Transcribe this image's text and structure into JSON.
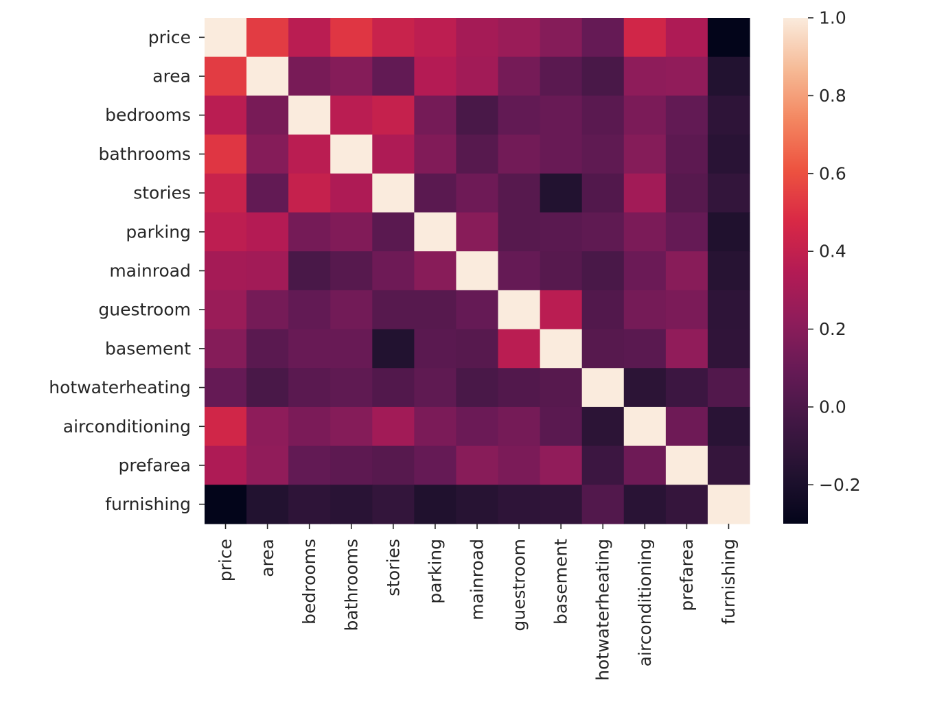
{
  "chart_data": {
    "type": "heatmap",
    "title": "",
    "xlabel": "",
    "ylabel": "",
    "labels": [
      "price",
      "area",
      "bedrooms",
      "bathrooms",
      "stories",
      "parking",
      "mainroad",
      "guestroom",
      "basement",
      "hotwaterheating",
      "airconditioning",
      "prefarea",
      "furnishing"
    ],
    "matrix": [
      [
        1.0,
        0.54,
        0.37,
        0.52,
        0.42,
        0.38,
        0.3,
        0.26,
        0.19,
        0.09,
        0.45,
        0.33,
        -0.3
      ],
      [
        0.54,
        1.0,
        0.15,
        0.19,
        0.08,
        0.35,
        0.29,
        0.14,
        0.05,
        -0.01,
        0.22,
        0.23,
        -0.17
      ],
      [
        0.37,
        0.15,
        1.0,
        0.37,
        0.41,
        0.14,
        -0.01,
        0.08,
        0.1,
        0.05,
        0.16,
        0.08,
        -0.12
      ],
      [
        0.52,
        0.19,
        0.37,
        1.0,
        0.33,
        0.18,
        0.04,
        0.13,
        0.1,
        0.07,
        0.19,
        0.06,
        -0.14
      ],
      [
        0.42,
        0.08,
        0.41,
        0.33,
        1.0,
        0.05,
        0.12,
        0.04,
        -0.17,
        0.02,
        0.29,
        0.04,
        -0.1
      ],
      [
        0.38,
        0.35,
        0.14,
        0.18,
        0.05,
        1.0,
        0.2,
        0.04,
        0.05,
        0.07,
        0.16,
        0.09,
        -0.18
      ],
      [
        0.3,
        0.29,
        -0.01,
        0.04,
        0.12,
        0.2,
        1.0,
        0.09,
        0.04,
        -0.01,
        0.11,
        0.2,
        -0.15
      ],
      [
        0.26,
        0.14,
        0.08,
        0.13,
        0.04,
        0.04,
        0.09,
        1.0,
        0.37,
        0.02,
        0.14,
        0.16,
        -0.12
      ],
      [
        0.19,
        0.05,
        0.1,
        0.1,
        -0.17,
        0.05,
        0.04,
        0.37,
        1.0,
        0.04,
        0.05,
        0.23,
        -0.11
      ],
      [
        0.09,
        -0.01,
        0.05,
        0.07,
        0.02,
        0.07,
        -0.01,
        0.02,
        0.04,
        1.0,
        -0.13,
        -0.06,
        0.02
      ],
      [
        0.45,
        0.22,
        0.16,
        0.19,
        0.29,
        0.16,
        0.11,
        0.14,
        0.05,
        -0.13,
        1.0,
        0.12,
        -0.14
      ],
      [
        0.33,
        0.23,
        0.08,
        0.06,
        0.04,
        0.09,
        0.2,
        0.16,
        0.23,
        -0.06,
        0.12,
        1.0,
        -0.09
      ],
      [
        -0.3,
        -0.17,
        -0.12,
        -0.14,
        -0.1,
        -0.18,
        -0.15,
        -0.12,
        -0.11,
        0.02,
        -0.14,
        -0.09,
        1.0
      ]
    ],
    "colorbar": {
      "min": -0.3,
      "max": 1.0,
      "ticks": [
        -0.2,
        0.0,
        0.2,
        0.4,
        0.6,
        0.8,
        1.0
      ],
      "tick_labels": [
        "−0.2",
        "0.0",
        "0.2",
        "0.4",
        "0.6",
        "0.8",
        "1.0"
      ],
      "colormap": "rocket"
    },
    "grid": false,
    "legend": "colorbar-right"
  }
}
